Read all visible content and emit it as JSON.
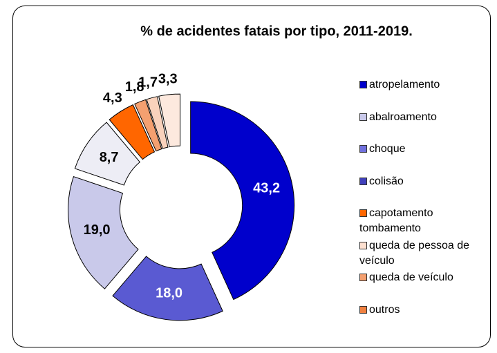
{
  "chart_data": {
    "type": "donut",
    "title": "% de acidentes fatais por tipo, 2011-2019.",
    "values": [
      43.2,
      18.0,
      19.0,
      8.7,
      4.3,
      1.8,
      1.7,
      3.3
    ],
    "value_labels": [
      "43,2",
      "18,0",
      "19,0",
      "8,7",
      "4,3",
      "1,8",
      "1,7",
      "3,3"
    ],
    "colors": [
      "#0000cc",
      "#5a5ad2",
      "#c9c9ea",
      "#ededf5",
      "#ff6600",
      "#f4a070",
      "#f9d2bc",
      "#fde9de"
    ],
    "legend": [
      {
        "label": "atropelamento",
        "color": "#0000cc"
      },
      {
        "label": "abalroamento",
        "color": "#c9c9ea"
      },
      {
        "label": "choque",
        "color": "#7070dd"
      },
      {
        "label": "colisão",
        "color": "#4040bb"
      },
      {
        "label": "capotamento tombamento",
        "color": "#ff6600"
      },
      {
        "label": "queda de pessoa de veículo",
        "color": "#fde0d0"
      },
      {
        "label": "queda de veículo",
        "color": "#f4a070"
      },
      {
        "label": "outros",
        "color": "#f08040"
      }
    ]
  }
}
